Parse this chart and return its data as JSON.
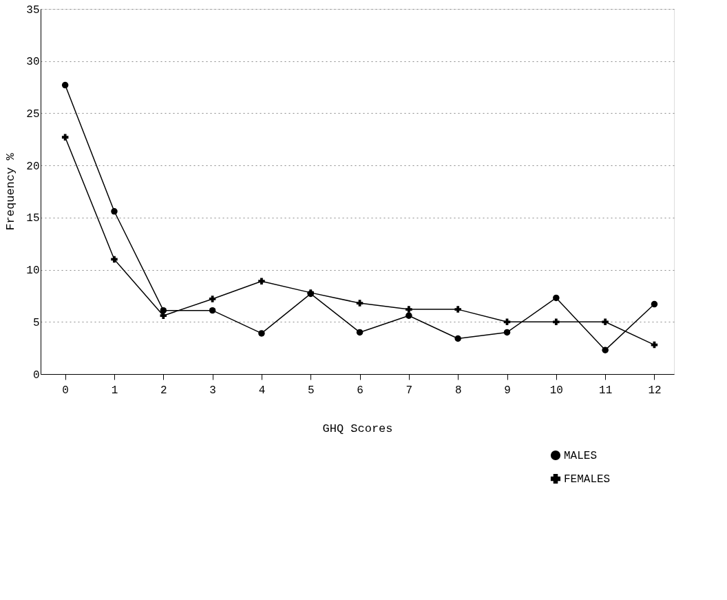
{
  "chart_data": {
    "type": "line",
    "xlabel": "GHQ Scores",
    "ylabel": "Frequency %",
    "x": [
      0,
      1,
      2,
      3,
      4,
      5,
      6,
      7,
      8,
      9,
      10,
      11,
      12
    ],
    "series": [
      {
        "name": "MALES",
        "color": "#000000",
        "marker": "circle",
        "values": [
          27.7,
          15.6,
          6.1,
          6.1,
          3.9,
          7.7,
          4.0,
          5.6,
          3.4,
          4.0,
          7.3,
          2.3,
          6.7
        ]
      },
      {
        "name": "FEMALES",
        "color": "#000000",
        "marker": "cross",
        "values": [
          22.7,
          11.0,
          5.6,
          7.2,
          8.9,
          7.8,
          6.8,
          6.2,
          6.2,
          5.0,
          5.0,
          5.0,
          2.8
        ]
      }
    ],
    "xlim": [
      -0.5,
      12.4
    ],
    "xticks": [
      0,
      1,
      2,
      3,
      4,
      5,
      6,
      7,
      8,
      9,
      10,
      11,
      12
    ],
    "ylim": [
      0,
      35
    ],
    "yticks": [
      0,
      5,
      10,
      15,
      20,
      25,
      30,
      35
    ],
    "grid": "y",
    "legend": "bottom right",
    "line_style": "solid"
  }
}
